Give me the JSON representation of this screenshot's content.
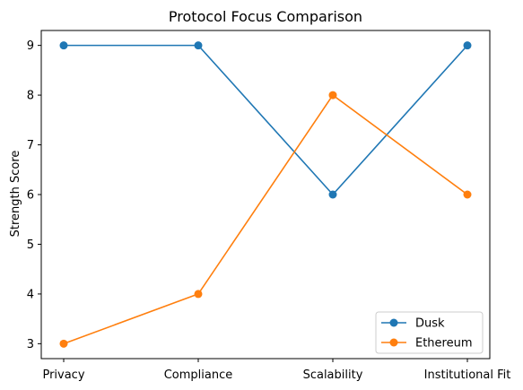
{
  "chart_data": {
    "type": "line",
    "title": "Protocol Focus Comparison",
    "xlabel": "",
    "ylabel": "Strength Score",
    "categories": [
      "Privacy",
      "Compliance",
      "Scalability",
      "Institutional Fit"
    ],
    "series": [
      {
        "name": "Dusk",
        "values": [
          9,
          9,
          6,
          9
        ],
        "color": "#1f77b4"
      },
      {
        "name": "Ethereum",
        "values": [
          3,
          4,
          8,
          6
        ],
        "color": "#ff7f0e"
      }
    ],
    "ylim": [
      2.7,
      9.3
    ],
    "yticks": [
      3,
      4,
      5,
      6,
      7,
      8,
      9
    ],
    "grid": false,
    "legend_position": "lower-right",
    "marker": "circle"
  }
}
